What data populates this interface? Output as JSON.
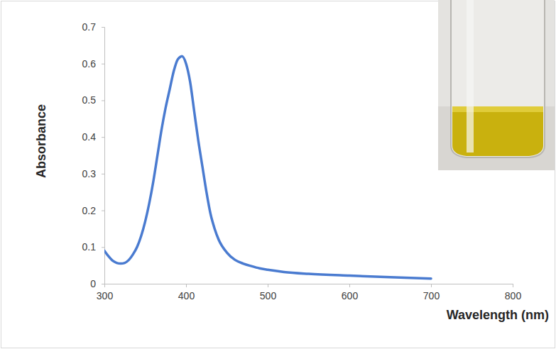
{
  "chart_data": {
    "type": "line",
    "x_label": "Wavelength (nm)",
    "y_label": "Absorbance",
    "x": [
      300,
      305,
      310,
      315,
      320,
      325,
      330,
      335,
      340,
      345,
      350,
      355,
      360,
      365,
      370,
      375,
      380,
      385,
      390,
      395,
      400,
      405,
      410,
      415,
      420,
      425,
      430,
      435,
      440,
      450,
      460,
      470,
      480,
      490,
      500,
      520,
      550,
      600,
      650,
      700
    ],
    "values": [
      0.09,
      0.075,
      0.063,
      0.057,
      0.055,
      0.057,
      0.065,
      0.08,
      0.1,
      0.13,
      0.17,
      0.22,
      0.28,
      0.35,
      0.42,
      0.48,
      0.53,
      0.58,
      0.612,
      0.62,
      0.6,
      0.55,
      0.47,
      0.39,
      0.32,
      0.25,
      0.19,
      0.15,
      0.12,
      0.085,
      0.065,
      0.055,
      0.048,
      0.042,
      0.038,
      0.032,
      0.027,
      0.022,
      0.018,
      0.014
    ],
    "color": "#4a7bd0",
    "xlim": [
      300,
      800
    ],
    "xticks": [
      300,
      400,
      500,
      600,
      700,
      800
    ],
    "ylim": [
      0,
      0.7
    ],
    "yticks": [
      0,
      0.1,
      0.2,
      0.3,
      0.4,
      0.5,
      0.6,
      0.7
    ],
    "grid": false
  }
}
